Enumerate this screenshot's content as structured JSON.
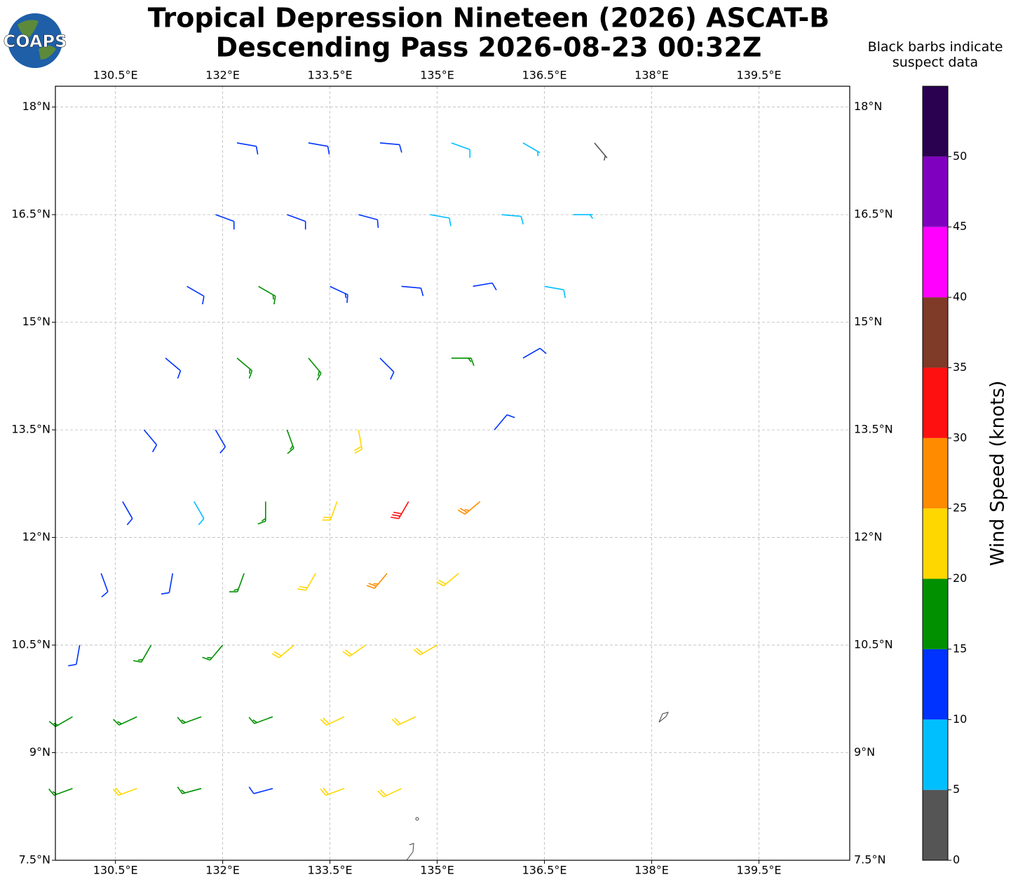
{
  "chart_data": {
    "type": "barbs",
    "title": "Tropical Depression Nineteen (2026) ASCAT-B",
    "subtitle": "Descending Pass 2026-08-23 00:32Z",
    "logo": "COAPS",
    "note": "Black barbs indicate suspect data",
    "xlim": [
      129.66,
      140.77
    ],
    "ylim": [
      7.5,
      18.29
    ],
    "xticks": [
      {
        "value": 130.5,
        "label": "130.5°E"
      },
      {
        "value": 132,
        "label": "132°E"
      },
      {
        "value": 133.5,
        "label": "133.5°E"
      },
      {
        "value": 135,
        "label": "135°E"
      },
      {
        "value": 136.5,
        "label": "136.5°E"
      },
      {
        "value": 138,
        "label": "138°E"
      },
      {
        "value": 139.5,
        "label": "139.5°E"
      }
    ],
    "yticks": [
      {
        "value": 7.5,
        "label": "7.5°N"
      },
      {
        "value": 9,
        "label": "9°N"
      },
      {
        "value": 10.5,
        "label": "10.5°N"
      },
      {
        "value": 12,
        "label": "12°N"
      },
      {
        "value": 13.5,
        "label": "13.5°N"
      },
      {
        "value": 15,
        "label": "15°N"
      },
      {
        "value": 16.5,
        "label": "16.5°N"
      },
      {
        "value": 18,
        "label": "18°N"
      }
    ],
    "grid": true,
    "lon": [
      132.2,
      133.2,
      134.2,
      135.2,
      136.2,
      137.2,
      131.9,
      132.9,
      133.9,
      134.9,
      135.9,
      136.9,
      131.5,
      132.5,
      133.5,
      134.5,
      135.5,
      136.5,
      131.2,
      132.2,
      133.2,
      134.2,
      135.2,
      136.2,
      130.9,
      131.9,
      132.9,
      133.9,
      135.8,
      130.6,
      131.6,
      132.6,
      133.6,
      134.6,
      135.6,
      130.3,
      131.3,
      132.3,
      133.3,
      134.3,
      135.3,
      130.0,
      131.0,
      132.0,
      133.0,
      134.0,
      135.0,
      129.9,
      130.8,
      131.7,
      132.7,
      133.7,
      134.7,
      129.9,
      130.8,
      131.7,
      132.7,
      133.7,
      134.5
    ],
    "lat": [
      17.5,
      17.5,
      17.5,
      17.5,
      17.5,
      17.5,
      16.5,
      16.5,
      16.5,
      16.5,
      16.5,
      16.5,
      15.5,
      15.5,
      15.5,
      15.5,
      15.5,
      15.5,
      14.5,
      14.5,
      14.5,
      14.5,
      14.5,
      14.5,
      13.5,
      13.5,
      13.5,
      13.5,
      13.5,
      12.5,
      12.5,
      12.5,
      12.5,
      12.5,
      12.5,
      11.5,
      11.5,
      11.5,
      11.5,
      11.5,
      11.5,
      10.5,
      10.5,
      10.5,
      10.5,
      10.5,
      10.5,
      9.5,
      9.5,
      9.5,
      9.5,
      9.5,
      9.5,
      8.5,
      8.5,
      8.5,
      8.5,
      8.5,
      8.5
    ],
    "speed": [
      12,
      12,
      12,
      8,
      7,
      3,
      12,
      12,
      12,
      8,
      8,
      7,
      12,
      17,
      14,
      12,
      12,
      8,
      12,
      17,
      17,
      12,
      17,
      12,
      12,
      12,
      17,
      22,
      12,
      12,
      8,
      17,
      22,
      32,
      27,
      12,
      12,
      17,
      22,
      27,
      22,
      12,
      17,
      17,
      22,
      22,
      22,
      17,
      17,
      17,
      17,
      22,
      22,
      17,
      22,
      17,
      12,
      22,
      22
    ],
    "direction": [
      100,
      100,
      95,
      110,
      120,
      140,
      110,
      110,
      105,
      100,
      95,
      90,
      120,
      120,
      115,
      95,
      80,
      100,
      130,
      130,
      140,
      135,
      90,
      60,
      140,
      150,
      160,
      170,
      40,
      150,
      150,
      180,
      200,
      210,
      230,
      160,
      190,
      200,
      210,
      220,
      230,
      190,
      210,
      220,
      230,
      235,
      240,
      240,
      245,
      250,
      250,
      245,
      245,
      250,
      250,
      255,
      255,
      250,
      245
    ],
    "colorbar": {
      "label": "Wind Speed (knots)",
      "bounds": [
        0,
        5,
        10,
        15,
        20,
        25,
        30,
        35,
        40,
        45,
        50,
        55
      ],
      "colors": [
        "#555555",
        "#00bfff",
        "#0033ff",
        "#009000",
        "#ffd700",
        "#ff8c00",
        "#ff1010",
        "#7f3a28",
        "#ff00ff",
        "#8000c0",
        "#2a0050"
      ],
      "ticks": [
        0,
        5,
        10,
        15,
        20,
        25,
        30,
        35,
        40,
        45,
        50
      ]
    }
  }
}
